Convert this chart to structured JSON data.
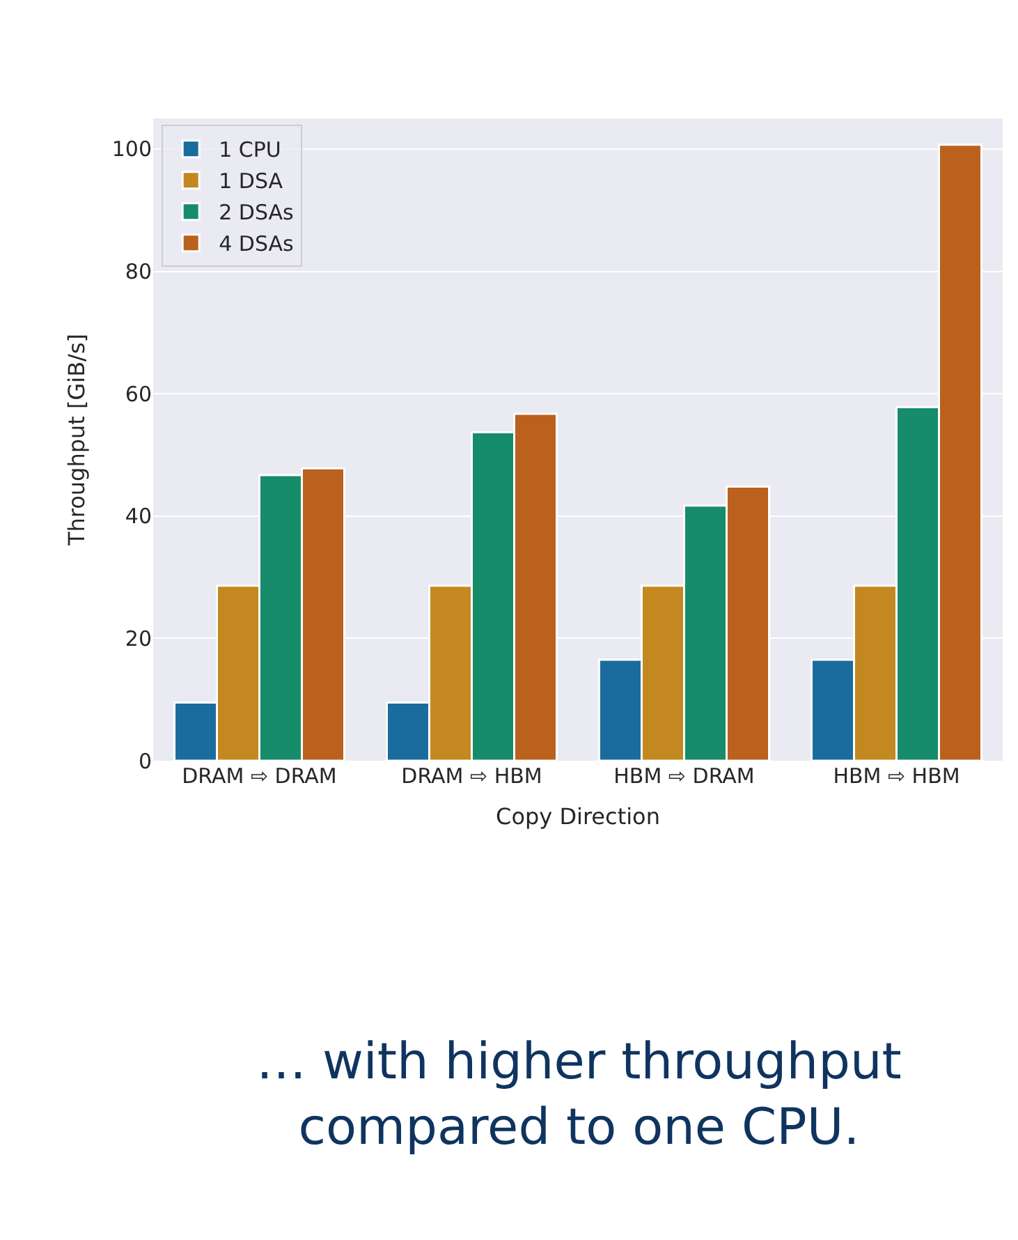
{
  "chart_data": {
    "type": "bar",
    "xlabel": "Copy Direction",
    "ylabel": "Throughput [GiB/s]",
    "categories": [
      "DRAM ⇨ DRAM",
      "DRAM ⇨ HBM",
      "HBM ⇨ DRAM",
      "HBM ⇨ HBM"
    ],
    "series": [
      {
        "name": "1 CPU",
        "color": "#1a6c9f",
        "values": [
          9.5,
          9.5,
          16.5,
          16.5
        ]
      },
      {
        "name": "1 DSA",
        "color": "#c48820",
        "values": [
          28.6,
          28.6,
          28.6,
          28.6
        ]
      },
      {
        "name": "2 DSAs",
        "color": "#168c6a",
        "values": [
          46.7,
          53.7,
          41.7,
          57.8
        ]
      },
      {
        "name": "4 DSAs",
        "color": "#ba611d",
        "values": [
          47.8,
          56.7,
          44.8,
          100.7
        ]
      }
    ],
    "ylim": [
      0,
      105
    ],
    "yticks": [
      0,
      20,
      40,
      60,
      80,
      100
    ],
    "grid": "y",
    "legend": "top left",
    "annotations": [
      "… with higher throughput compared to one CPU."
    ]
  }
}
